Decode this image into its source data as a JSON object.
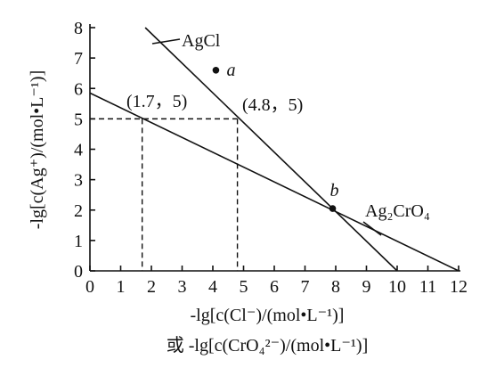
{
  "chart_data": {
    "type": "line",
    "ylabel": "-lg[c(Ag⁺)/(mol•L⁻¹)]",
    "xlabel_line1": "-lg[c(Cl⁻)/(mol•L⁻¹)]",
    "xlabel_line2": "或 -lg[c(CrO₄²⁻)/(mol•L⁻¹)]",
    "xlim": [
      0,
      12
    ],
    "ylim": [
      0,
      8
    ],
    "xticks": [
      "0",
      "1",
      "2",
      "3",
      "4",
      "5",
      "6",
      "7",
      "8",
      "9",
      "10",
      "11",
      "12"
    ],
    "yticks": [
      "0",
      "1",
      "2",
      "3",
      "4",
      "5",
      "6",
      "7",
      "8"
    ],
    "series": [
      {
        "name": "AgCl",
        "x": [
          1.8,
          10
        ],
        "y": [
          8,
          0
        ]
      },
      {
        "name": "Ag₂CrO₄",
        "x": [
          0,
          12
        ],
        "y": [
          5.85,
          0
        ]
      }
    ],
    "points": [
      {
        "name": "a",
        "x": 4.1,
        "y": 6.6
      },
      {
        "name": "b",
        "x": 7.9,
        "y": 2.05
      }
    ],
    "annotations": [
      {
        "text": "(1.7，5)",
        "x": 1.7,
        "y": 5
      },
      {
        "text": "(4.8，5)",
        "x": 4.8,
        "y": 5
      }
    ],
    "grid": false,
    "legend": "none"
  }
}
